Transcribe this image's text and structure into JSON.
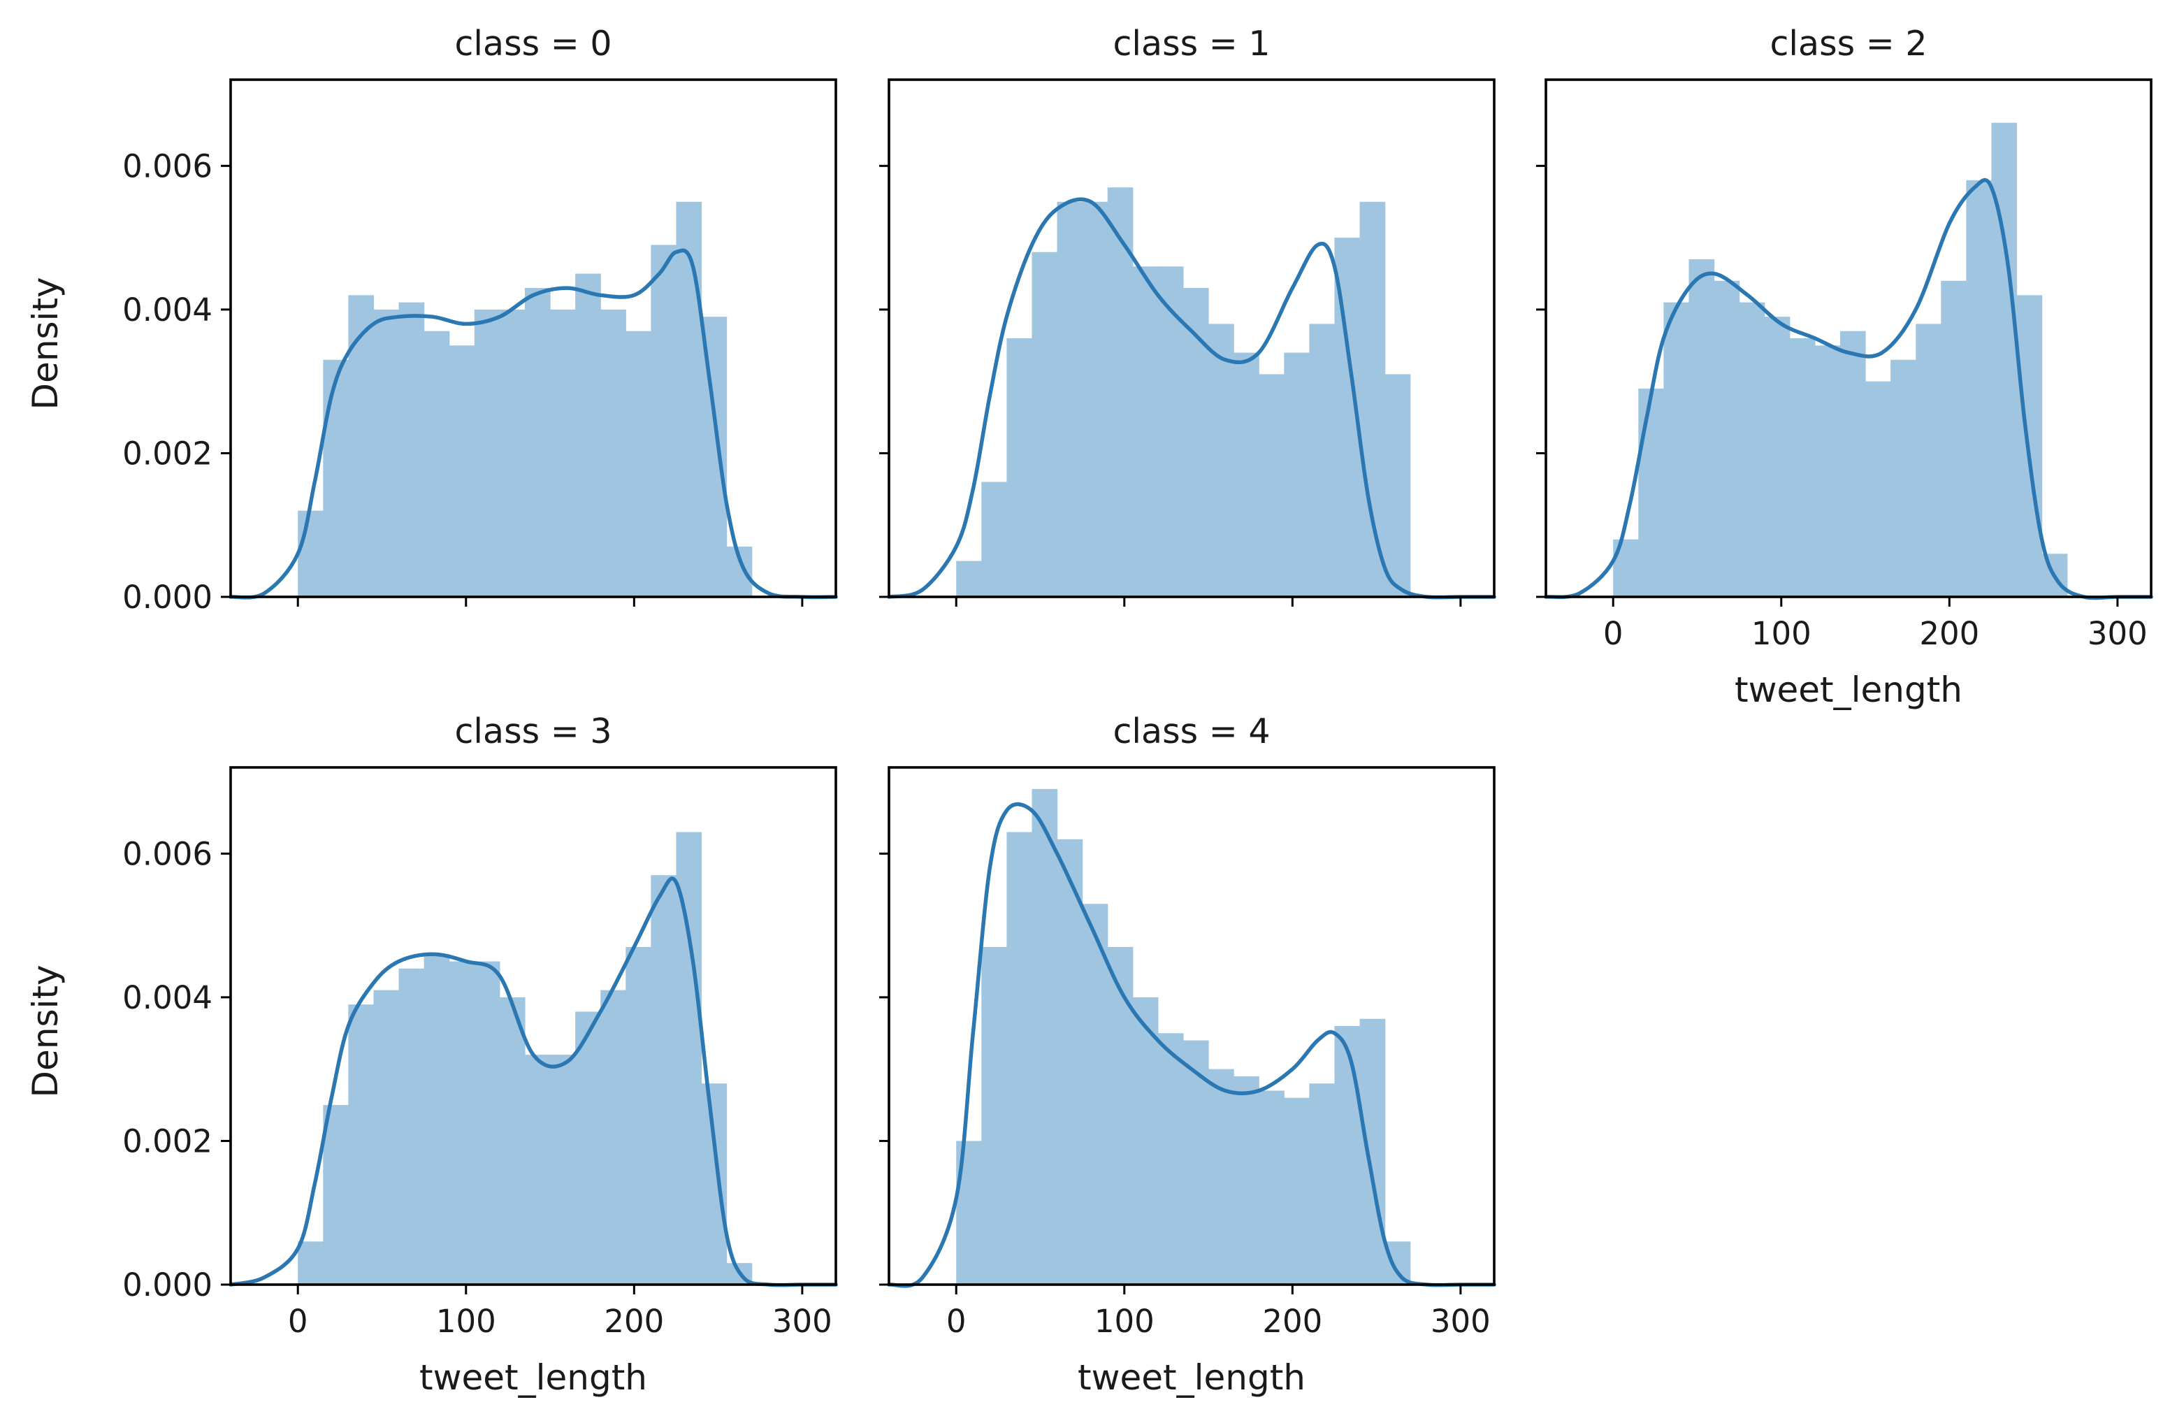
{
  "chart_data": [
    {
      "type": "histogram+kde",
      "title": "class = 0",
      "xlabel": "",
      "ylabel": "Density",
      "xlim": [
        -40,
        320
      ],
      "ylim": [
        0,
        0.0072
      ],
      "xticks": [
        "0",
        "100",
        "200",
        "300"
      ],
      "yticks": [
        "0.000",
        "0.002",
        "0.004",
        "0.006"
      ],
      "bins": [
        0,
        15,
        30,
        45,
        60,
        75,
        90,
        105,
        120,
        135,
        150,
        165,
        180,
        195,
        210,
        225,
        240,
        255,
        270
      ],
      "bar_values": [
        0.0012,
        0.0033,
        0.0042,
        0.004,
        0.0041,
        0.0037,
        0.0035,
        0.004,
        0.004,
        0.0043,
        0.004,
        0.0045,
        0.004,
        0.0037,
        0.0049,
        0.0055,
        0.0039,
        0.0007
      ],
      "kde": {
        "x": [
          -40,
          -20,
          0,
          10,
          20,
          30,
          45,
          60,
          80,
          100,
          120,
          140,
          160,
          180,
          200,
          215,
          225,
          235,
          245,
          255,
          265,
          280,
          300,
          320
        ],
        "y": [
          0.0,
          5e-05,
          0.0006,
          0.0016,
          0.0028,
          0.0034,
          0.0038,
          0.0039,
          0.0039,
          0.0038,
          0.0039,
          0.0042,
          0.0043,
          0.0042,
          0.0042,
          0.0045,
          0.0048,
          0.0046,
          0.003,
          0.0013,
          0.0004,
          5e-05,
          0.0,
          0.0
        ]
      }
    },
    {
      "type": "histogram+kde",
      "title": "class = 1",
      "xlabel": "",
      "ylabel": "",
      "xlim": [
        -40,
        320
      ],
      "ylim": [
        0,
        0.0072
      ],
      "xticks": [
        "0",
        "100",
        "200",
        "300"
      ],
      "yticks": [
        "0.000",
        "0.002",
        "0.004",
        "0.006"
      ],
      "bins": [
        0,
        15,
        30,
        45,
        60,
        75,
        90,
        105,
        120,
        135,
        150,
        165,
        180,
        195,
        210,
        225,
        240,
        255,
        270
      ],
      "bar_values": [
        0.0005,
        0.0016,
        0.0036,
        0.0048,
        0.0055,
        0.0055,
        0.0057,
        0.0046,
        0.0046,
        0.0043,
        0.0038,
        0.0034,
        0.0031,
        0.0034,
        0.0038,
        0.005,
        0.0055,
        0.0031
      ],
      "kde": {
        "x": [
          -40,
          -20,
          0,
          10,
          20,
          30,
          45,
          60,
          80,
          100,
          120,
          140,
          160,
          180,
          200,
          215,
          225,
          235,
          245,
          255,
          265,
          280,
          300,
          320
        ],
        "y": [
          0.0,
          0.0001,
          0.0007,
          0.0015,
          0.0028,
          0.0039,
          0.0049,
          0.0054,
          0.0055,
          0.0049,
          0.0042,
          0.0037,
          0.0033,
          0.0034,
          0.0043,
          0.0049,
          0.0046,
          0.0031,
          0.0014,
          0.0004,
          0.0001,
          0.0,
          0.0,
          0.0
        ]
      }
    },
    {
      "type": "histogram+kde",
      "title": "class = 2",
      "xlabel": "tweet_length",
      "ylabel": "",
      "xlim": [
        -40,
        320
      ],
      "ylim": [
        0,
        0.0072
      ],
      "xticks": [
        "0",
        "100",
        "200",
        "300"
      ],
      "yticks": [
        "0.000",
        "0.002",
        "0.004",
        "0.006"
      ],
      "bins": [
        0,
        15,
        30,
        45,
        60,
        75,
        90,
        105,
        120,
        135,
        150,
        165,
        180,
        195,
        210,
        225,
        240,
        255,
        270
      ],
      "bar_values": [
        0.0008,
        0.0029,
        0.0041,
        0.0047,
        0.0044,
        0.0041,
        0.0039,
        0.0036,
        0.0035,
        0.0037,
        0.003,
        0.0033,
        0.0038,
        0.0044,
        0.0058,
        0.0066,
        0.0042,
        0.0006
      ],
      "kde": {
        "x": [
          -40,
          -20,
          0,
          10,
          20,
          30,
          45,
          60,
          80,
          100,
          120,
          140,
          160,
          180,
          200,
          215,
          225,
          235,
          245,
          255,
          265,
          280,
          300,
          320
        ],
        "y": [
          0.0,
          5e-05,
          0.0005,
          0.0013,
          0.0025,
          0.0036,
          0.0043,
          0.0045,
          0.0042,
          0.0038,
          0.0036,
          0.0034,
          0.0034,
          0.004,
          0.0052,
          0.0057,
          0.0057,
          0.0046,
          0.0024,
          0.0008,
          0.0002,
          0.0,
          0.0,
          0.0
        ]
      }
    },
    {
      "type": "histogram+kde",
      "title": "class = 3",
      "xlabel": "tweet_length",
      "ylabel": "Density",
      "xlim": [
        -40,
        320
      ],
      "ylim": [
        0,
        0.0072
      ],
      "xticks": [
        "0",
        "100",
        "200",
        "300"
      ],
      "yticks": [
        "0.000",
        "0.002",
        "0.004",
        "0.006"
      ],
      "bins": [
        0,
        15,
        30,
        45,
        60,
        75,
        90,
        105,
        120,
        135,
        150,
        165,
        180,
        195,
        210,
        225,
        240,
        255,
        270
      ],
      "bar_values": [
        0.0006,
        0.0025,
        0.0039,
        0.0041,
        0.0044,
        0.0046,
        0.0045,
        0.0045,
        0.004,
        0.0032,
        0.0032,
        0.0038,
        0.0041,
        0.0047,
        0.0057,
        0.0063,
        0.0028,
        0.0003
      ],
      "kde": {
        "x": [
          -40,
          -20,
          0,
          10,
          20,
          30,
          45,
          60,
          80,
          100,
          120,
          140,
          160,
          180,
          200,
          215,
          225,
          235,
          245,
          255,
          265,
          280,
          300,
          320
        ],
        "y": [
          0.0,
          0.0001,
          0.0005,
          0.0014,
          0.0026,
          0.0036,
          0.0042,
          0.0045,
          0.0046,
          0.0045,
          0.0043,
          0.0032,
          0.0031,
          0.0038,
          0.0047,
          0.0054,
          0.0056,
          0.0045,
          0.0025,
          0.0007,
          0.0001,
          0.0,
          0.0,
          0.0
        ]
      }
    },
    {
      "type": "histogram+kde",
      "title": "class = 4",
      "xlabel": "tweet_length",
      "ylabel": "",
      "xlim": [
        -40,
        320
      ],
      "ylim": [
        0,
        0.0072
      ],
      "xticks": [
        "0",
        "100",
        "200",
        "300"
      ],
      "yticks": [
        "0.000",
        "0.002",
        "0.004",
        "0.006"
      ],
      "bins": [
        0,
        15,
        30,
        45,
        60,
        75,
        90,
        105,
        120,
        135,
        150,
        165,
        180,
        195,
        210,
        225,
        240,
        255,
        270
      ],
      "bar_values": [
        0.002,
        0.0047,
        0.0063,
        0.0069,
        0.0062,
        0.0053,
        0.0047,
        0.004,
        0.0035,
        0.0034,
        0.003,
        0.0029,
        0.0027,
        0.0026,
        0.0028,
        0.0036,
        0.0037,
        0.0006
      ],
      "kde": {
        "x": [
          -40,
          -20,
          0,
          10,
          20,
          30,
          45,
          60,
          80,
          100,
          120,
          140,
          160,
          180,
          200,
          215,
          225,
          235,
          245,
          255,
          265,
          280,
          300,
          320
        ],
        "y": [
          0.0,
          0.0001,
          0.0012,
          0.0035,
          0.0058,
          0.0066,
          0.0066,
          0.006,
          0.005,
          0.004,
          0.0034,
          0.003,
          0.0027,
          0.0027,
          0.003,
          0.0034,
          0.0035,
          0.0031,
          0.0018,
          0.0006,
          0.0001,
          0.0,
          0.0,
          0.0
        ]
      }
    }
  ]
}
